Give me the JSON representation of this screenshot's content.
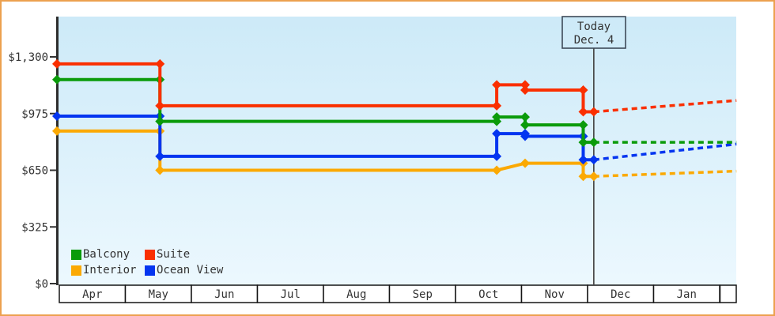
{
  "frame": {
    "border_color": "#eca14f",
    "background": "#ffffff"
  },
  "today_marker": {
    "line1": "Today",
    "line2": "Dec. 4"
  },
  "legend": {
    "rows": [
      [
        {
          "label": "Balcony",
          "color": "#0a9b0a"
        },
        {
          "label": "Suite",
          "color": "#fa2f00"
        }
      ],
      [
        {
          "label": "Interior",
          "color": "#fba903"
        },
        {
          "label": "Ocean View",
          "color": "#0435f0"
        }
      ]
    ]
  },
  "chart_data": {
    "type": "line",
    "x_axis": {
      "months": [
        "Apr",
        "May",
        "Jun",
        "Jul",
        "Aug",
        "Sep",
        "Oct",
        "Nov",
        "Dec",
        "Jan"
      ],
      "x_unit": "month index, 0 = start of Apr"
    },
    "y_axis": {
      "unit": "USD",
      "range": [
        0,
        1300
      ],
      "ticks": [
        {
          "value": 0,
          "label": "$0"
        },
        {
          "value": 325,
          "label": "$325"
        },
        {
          "value": 650,
          "label": "$650"
        },
        {
          "value": 975,
          "label": "$975"
        },
        {
          "value": 1300,
          "label": "$1,300"
        }
      ]
    },
    "grid": false,
    "legend_position": "bottom-left",
    "plot_background": {
      "top": "#cdeaf8",
      "bottom": "#ecf8fe"
    },
    "today": {
      "x": 8.13
    },
    "series": [
      {
        "name": "Interior",
        "color": "#fba903",
        "points": [
          [
            0,
            875
          ],
          [
            1.56,
            875
          ],
          [
            1.56,
            650
          ],
          [
            6.66,
            650
          ],
          [
            7.09,
            690
          ],
          [
            7.97,
            690
          ],
          [
            7.97,
            615
          ],
          [
            8.13,
            615
          ]
        ],
        "projection": [
          [
            8.13,
            615
          ],
          [
            10.29,
            645
          ]
        ]
      },
      {
        "name": "Ocean View",
        "color": "#0435f0",
        "points": [
          [
            0,
            960
          ],
          [
            1.56,
            960
          ],
          [
            1.56,
            730
          ],
          [
            6.66,
            730
          ],
          [
            6.66,
            860
          ],
          [
            7.09,
            860
          ],
          [
            7.09,
            845
          ],
          [
            7.97,
            845
          ],
          [
            7.97,
            710
          ],
          [
            8.13,
            710
          ]
        ],
        "projection": [
          [
            8.13,
            710
          ],
          [
            10.29,
            800
          ]
        ]
      },
      {
        "name": "Balcony",
        "color": "#0a9b0a",
        "points": [
          [
            0,
            1170
          ],
          [
            1.56,
            1170
          ],
          [
            1.56,
            930
          ],
          [
            6.66,
            930
          ],
          [
            6.66,
            955
          ],
          [
            7.09,
            955
          ],
          [
            7.09,
            910
          ],
          [
            7.97,
            910
          ],
          [
            7.97,
            810
          ],
          [
            8.13,
            810
          ]
        ],
        "projection": [
          [
            8.13,
            810
          ],
          [
            10.29,
            810
          ]
        ]
      },
      {
        "name": "Suite",
        "color": "#fa2f00",
        "points": [
          [
            0,
            1260
          ],
          [
            1.56,
            1260
          ],
          [
            1.56,
            1020
          ],
          [
            6.66,
            1020
          ],
          [
            6.66,
            1140
          ],
          [
            7.09,
            1140
          ],
          [
            7.09,
            1110
          ],
          [
            7.97,
            1110
          ],
          [
            7.97,
            985
          ],
          [
            8.13,
            985
          ]
        ],
        "projection": [
          [
            8.13,
            985
          ],
          [
            10.29,
            1050
          ]
        ]
      }
    ]
  }
}
